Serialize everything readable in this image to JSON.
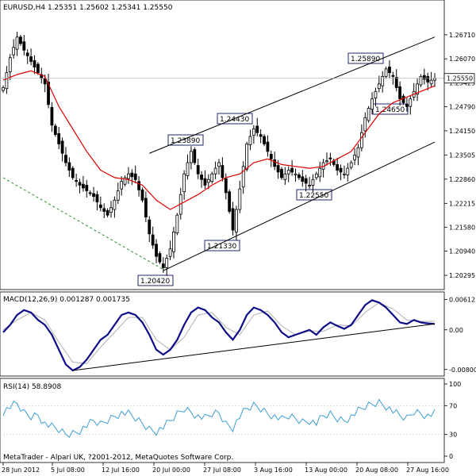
{
  "window": {
    "header": "EURUSD,H4  1.25351 1.25602 1.25341 1.25550",
    "watermark": "MetaTrader - Alpari UK, ?2001-2012, MetaQuotes Software Corp."
  },
  "colors": {
    "background": "#ffffff",
    "candles": "#000000",
    "ma": "#e00000",
    "trend": "#000000",
    "green_dotted": "#2a8a2a",
    "macd_main": "#0d0d8a",
    "macd_signal": "#b0b0b0",
    "rsi": "#3c9fd3",
    "price_box_bg": "#ffffff"
  },
  "chart_data": [
    {
      "type": "candlestick",
      "title": "EURUSD,H4",
      "header_values": {
        "open": 1.25351,
        "high": 1.25602,
        "low": 1.25341,
        "close": 1.2555
      },
      "ylim": [
        1.2,
        1.273
      ],
      "y_ticks": [
        "1.26710",
        "1.26070",
        "1.25425",
        "1.24790",
        "1.24150",
        "1.23505",
        "1.22860",
        "1.22215",
        "1.21580",
        "1.20940",
        "1.20295"
      ],
      "y_tick_values": [
        1.2671,
        1.2607,
        1.25425,
        1.2479,
        1.2415,
        1.23505,
        1.2286,
        1.22215,
        1.2158,
        1.2094,
        1.20295
      ],
      "x_ticks": [
        "28 Jun 2012",
        "5 Jul 08:00",
        "12 Jul 16:00",
        "20 Jul 00:00",
        "27 Jul 08:00",
        "3 Aug 16:00",
        "13 Aug 00:00",
        "20 Aug 08:00",
        "27 Aug 16:00"
      ],
      "current_price": "1.25550",
      "current_price_value": 1.2555,
      "annotations": [
        {
          "label": "1.20420",
          "value": 1.2042
        },
        {
          "label": "1.21330",
          "value": 1.2133
        },
        {
          "label": "1.23890",
          "value": 1.2389
        },
        {
          "label": "1.24430",
          "value": 1.2443
        },
        {
          "label": "1.22550",
          "value": 1.2255
        },
        {
          "label": "1.24650",
          "value": 1.2465
        },
        {
          "label": "1.25890",
          "value": 1.2589
        }
      ],
      "close_path": [
        [
          0,
          1.253
        ],
        [
          2,
          1.261
        ],
        [
          4,
          1.2665
        ],
        [
          6,
          1.263
        ],
        [
          8,
          1.26
        ],
        [
          10,
          1.257
        ],
        [
          12,
          1.254
        ],
        [
          14,
          1.243
        ],
        [
          16,
          1.238
        ],
        [
          18,
          1.233
        ],
        [
          20,
          1.229
        ],
        [
          22,
          1.227
        ],
        [
          24,
          1.2255
        ],
        [
          26,
          1.224
        ],
        [
          28,
          1.221
        ],
        [
          30,
          1.219
        ],
        [
          32,
          1.223
        ],
        [
          34,
          1.228
        ],
        [
          36,
          1.23
        ],
        [
          38,
          1.2285
        ],
        [
          40,
          1.223
        ],
        [
          42,
          1.214
        ],
        [
          44,
          1.208
        ],
        [
          46,
          1.205
        ],
        [
          48,
          1.21
        ],
        [
          50,
          1.219
        ],
        [
          52,
          1.23
        ],
        [
          54,
          1.236
        ],
        [
          56,
          1.23
        ],
        [
          58,
          1.227
        ],
        [
          60,
          1.23
        ],
        [
          62,
          1.233
        ],
        [
          64,
          1.225
        ],
        [
          66,
          1.215
        ],
        [
          68,
          1.226
        ],
        [
          70,
          1.238
        ],
        [
          72,
          1.242
        ],
        [
          74,
          1.24
        ],
        [
          76,
          1.236
        ],
        [
          78,
          1.232
        ],
        [
          80,
          1.229
        ],
        [
          82,
          1.231
        ],
        [
          84,
          1.23
        ],
        [
          86,
          1.228
        ],
        [
          88,
          1.227
        ],
        [
          90,
          1.23
        ],
        [
          92,
          1.233
        ],
        [
          94,
          1.234
        ],
        [
          96,
          1.231
        ],
        [
          98,
          1.23
        ],
        [
          100,
          1.233
        ],
        [
          102,
          1.237
        ],
        [
          104,
          1.245
        ],
        [
          106,
          1.25
        ],
        [
          108,
          1.254
        ],
        [
          110,
          1.258
        ],
        [
          112,
          1.256
        ],
        [
          114,
          1.25
        ],
        [
          116,
          1.248
        ],
        [
          118,
          1.252
        ],
        [
          120,
          1.256
        ],
        [
          122,
          1.2545
        ],
        [
          124,
          1.2555
        ]
      ],
      "ma_path": [
        [
          0,
          1.255
        ],
        [
          4,
          1.2565
        ],
        [
          8,
          1.2575
        ],
        [
          12,
          1.256
        ],
        [
          16,
          1.248
        ],
        [
          20,
          1.242
        ],
        [
          24,
          1.236
        ],
        [
          28,
          1.231
        ],
        [
          32,
          1.229
        ],
        [
          36,
          1.2285
        ],
        [
          40,
          1.227
        ],
        [
          44,
          1.223
        ],
        [
          48,
          1.2205
        ],
        [
          52,
          1.2225
        ],
        [
          56,
          1.2245
        ],
        [
          60,
          1.227
        ],
        [
          64,
          1.229
        ],
        [
          68,
          1.23
        ],
        [
          72,
          1.233
        ],
        [
          76,
          1.234
        ],
        [
          80,
          1.2325
        ],
        [
          84,
          1.232
        ],
        [
          88,
          1.2315
        ],
        [
          92,
          1.232
        ],
        [
          96,
          1.234
        ],
        [
          100,
          1.236
        ],
        [
          104,
          1.241
        ],
        [
          108,
          1.246
        ],
        [
          112,
          1.249
        ],
        [
          116,
          1.2505
        ],
        [
          120,
          1.252
        ],
        [
          124,
          1.2535
        ]
      ],
      "trend_lines": [
        {
          "name": "lower-channel",
          "from": [
            46,
            1.2042
          ],
          "to": [
            124,
            1.2385
          ]
        },
        {
          "name": "upper-channel",
          "from": [
            42,
            1.2355
          ],
          "to": [
            124,
            1.2665
          ]
        },
        {
          "name": "dotted-support",
          "from": [
            0,
            1.229
          ],
          "to": [
            46,
            1.2045
          ]
        }
      ]
    },
    {
      "type": "line",
      "title": "MACD(12,26,9)",
      "header_values": {
        "main": 0.001287,
        "signal": 0.001735
      },
      "ylim": [
        -0.009,
        0.007
      ],
      "y_ticks": [
        "0.00612",
        "0.00",
        "-0.00800"
      ],
      "y_tick_values": [
        0.00612,
        0.0,
        -0.008
      ],
      "main": [
        [
          0,
          -0.0005
        ],
        [
          2,
          0.001
        ],
        [
          4,
          0.003
        ],
        [
          6,
          0.004
        ],
        [
          8,
          0.0035
        ],
        [
          10,
          0.002
        ],
        [
          12,
          0.001
        ],
        [
          14,
          -0.001
        ],
        [
          16,
          -0.004
        ],
        [
          18,
          -0.007
        ],
        [
          20,
          -0.0082
        ],
        [
          22,
          -0.0075
        ],
        [
          24,
          -0.006
        ],
        [
          26,
          -0.004
        ],
        [
          28,
          -0.002
        ],
        [
          30,
          -0.001
        ],
        [
          32,
          0.001
        ],
        [
          34,
          0.003
        ],
        [
          36,
          0.0035
        ],
        [
          38,
          0.003
        ],
        [
          40,
          0.0015
        ],
        [
          42,
          -0.001
        ],
        [
          44,
          -0.004
        ],
        [
          46,
          -0.005
        ],
        [
          48,
          -0.004
        ],
        [
          50,
          -0.002
        ],
        [
          52,
          0.001
        ],
        [
          54,
          0.0035
        ],
        [
          56,
          0.0045
        ],
        [
          58,
          0.004
        ],
        [
          60,
          0.0025
        ],
        [
          62,
          0.0015
        ],
        [
          64,
          -0.0005
        ],
        [
          66,
          -0.002
        ],
        [
          68,
          0.0
        ],
        [
          70,
          0.003
        ],
        [
          72,
          0.0045
        ],
        [
          74,
          0.004
        ],
        [
          76,
          0.003
        ],
        [
          78,
          0.0015
        ],
        [
          80,
          -0.0005
        ],
        [
          82,
          -0.0015
        ],
        [
          84,
          -0.001
        ],
        [
          86,
          -0.0005
        ],
        [
          88,
          0.0
        ],
        [
          90,
          -0.001
        ],
        [
          92,
          0.0005
        ],
        [
          94,
          0.0015
        ],
        [
          96,
          0.0008
        ],
        [
          98,
          0.0002
        ],
        [
          100,
          0.001
        ],
        [
          102,
          0.003
        ],
        [
          104,
          0.005
        ],
        [
          106,
          0.006
        ],
        [
          108,
          0.0055
        ],
        [
          110,
          0.0045
        ],
        [
          112,
          0.003
        ],
        [
          114,
          0.0015
        ],
        [
          116,
          0.0012
        ],
        [
          118,
          0.002
        ],
        [
          120,
          0.0015
        ],
        [
          122,
          0.0013
        ],
        [
          124,
          0.0012
        ]
      ],
      "signal": [
        [
          0,
          0.0
        ],
        [
          4,
          0.002
        ],
        [
          8,
          0.0035
        ],
        [
          12,
          0.002
        ],
        [
          16,
          -0.0025
        ],
        [
          20,
          -0.0065
        ],
        [
          24,
          -0.0068
        ],
        [
          28,
          -0.0035
        ],
        [
          32,
          -0.0005
        ],
        [
          36,
          0.0025
        ],
        [
          40,
          0.0025
        ],
        [
          44,
          -0.002
        ],
        [
          48,
          -0.004
        ],
        [
          52,
          -0.0015
        ],
        [
          56,
          0.003
        ],
        [
          60,
          0.0035
        ],
        [
          64,
          0.0005
        ],
        [
          68,
          -0.001
        ],
        [
          72,
          0.003
        ],
        [
          76,
          0.0038
        ],
        [
          80,
          0.0008
        ],
        [
          84,
          -0.001
        ],
        [
          88,
          -0.0002
        ],
        [
          92,
          -0.0003
        ],
        [
          96,
          0.001
        ],
        [
          100,
          0.0008
        ],
        [
          104,
          0.0035
        ],
        [
          108,
          0.0055
        ],
        [
          112,
          0.0042
        ],
        [
          116,
          0.002
        ],
        [
          120,
          0.0017
        ],
        [
          124,
          0.0017
        ]
      ],
      "trend_lines": [
        {
          "name": "macd-support",
          "from": [
            20,
            -0.0082
          ],
          "to": [
            124,
            0.0012
          ]
        }
      ]
    },
    {
      "type": "line",
      "title": "RSI(14)",
      "header_values": {
        "rsi": 58.8908
      },
      "ylim": [
        0,
        100
      ],
      "y_ticks": [
        "100",
        "70",
        "30",
        "0"
      ],
      "y_tick_values": [
        100,
        70,
        30,
        0
      ],
      "values": [
        [
          0,
          62
        ],
        [
          2,
          68
        ],
        [
          4,
          72
        ],
        [
          6,
          60
        ],
        [
          8,
          55
        ],
        [
          10,
          58
        ],
        [
          12,
          45
        ],
        [
          14,
          40
        ],
        [
          16,
          36
        ],
        [
          18,
          30
        ],
        [
          20,
          32
        ],
        [
          22,
          36
        ],
        [
          24,
          42
        ],
        [
          26,
          48
        ],
        [
          28,
          44
        ],
        [
          30,
          50
        ],
        [
          32,
          56
        ],
        [
          34,
          60
        ],
        [
          36,
          58
        ],
        [
          38,
          52
        ],
        [
          40,
          45
        ],
        [
          42,
          38
        ],
        [
          44,
          35
        ],
        [
          46,
          40
        ],
        [
          48,
          48
        ],
        [
          50,
          58
        ],
        [
          52,
          66
        ],
        [
          54,
          62
        ],
        [
          56,
          55
        ],
        [
          58,
          52
        ],
        [
          60,
          58
        ],
        [
          62,
          60
        ],
        [
          64,
          45
        ],
        [
          66,
          40
        ],
        [
          68,
          55
        ],
        [
          70,
          65
        ],
        [
          72,
          70
        ],
        [
          74,
          66
        ],
        [
          76,
          60
        ],
        [
          78,
          55
        ],
        [
          80,
          50
        ],
        [
          82,
          55
        ],
        [
          84,
          52
        ],
        [
          86,
          48
        ],
        [
          88,
          50
        ],
        [
          90,
          45
        ],
        [
          92,
          55
        ],
        [
          94,
          58
        ],
        [
          96,
          52
        ],
        [
          98,
          50
        ],
        [
          100,
          55
        ],
        [
          102,
          62
        ],
        [
          104,
          68
        ],
        [
          106,
          72
        ],
        [
          108,
          75
        ],
        [
          110,
          70
        ],
        [
          112,
          62
        ],
        [
          114,
          55
        ],
        [
          116,
          52
        ],
        [
          118,
          62
        ],
        [
          120,
          60
        ],
        [
          122,
          56
        ],
        [
          124,
          59
        ]
      ]
    }
  ]
}
